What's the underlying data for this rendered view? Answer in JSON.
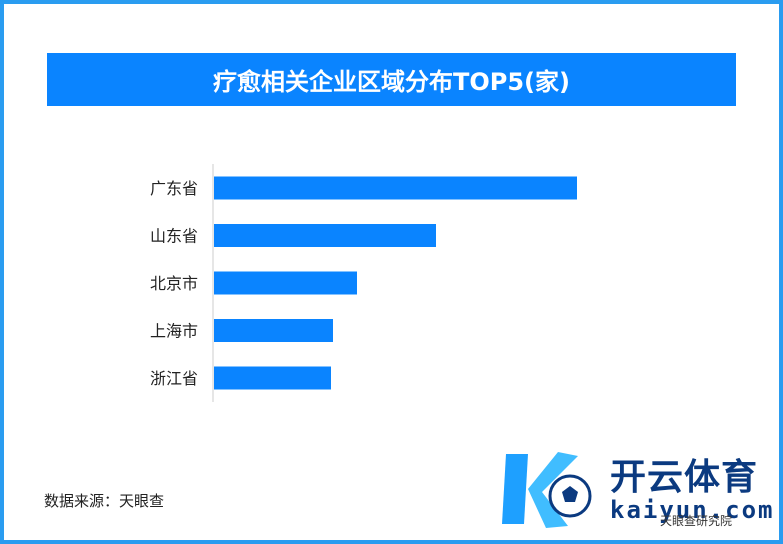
{
  "title": "疗愈相关企业区域分布TOP5(家)",
  "source": "数据来源：天眼查",
  "colors": {
    "bar": "#0a84ff",
    "title_bg": "#0a84ff",
    "border": "#2a9cf0"
  },
  "watermark": {
    "brand_cn": "开云体育",
    "brand_en": "kaiyun.com",
    "sub": "天眼查研究院",
    "icon": "soccer-ball-k-logo"
  },
  "chart_data": {
    "type": "bar",
    "orientation": "horizontal",
    "title": "疗愈相关企业区域分布TOP5(家)",
    "categories": [
      "广东省",
      "山东省",
      "北京市",
      "上海市",
      "浙江省"
    ],
    "values": [
      363,
      222,
      143,
      119,
      117
    ],
    "xlim": [
      0,
      400
    ],
    "xlabel": "",
    "ylabel": "",
    "grid": false,
    "legend": "none"
  }
}
